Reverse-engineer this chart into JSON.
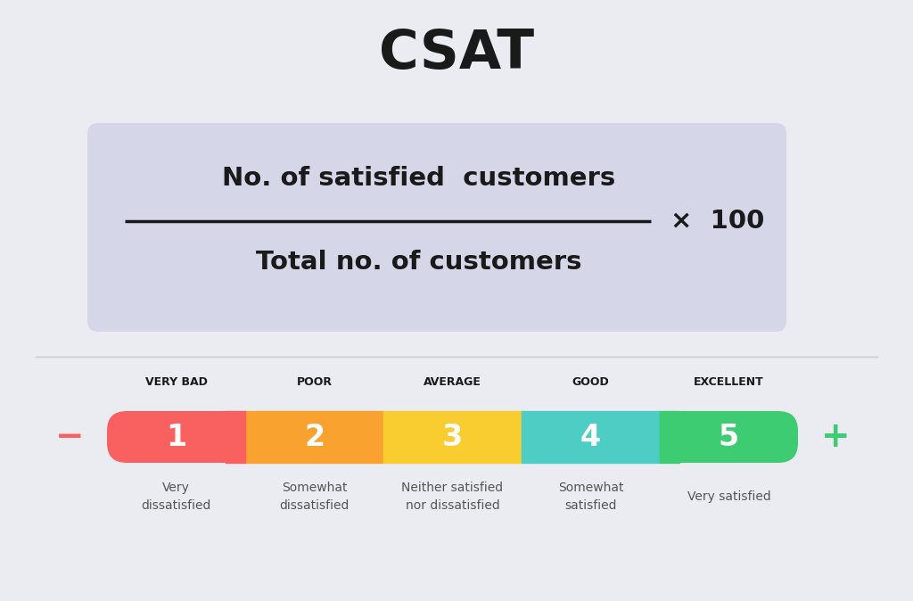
{
  "title": "CSAT",
  "title_fontsize": 44,
  "background_color": "#eaecf2",
  "formula_box_color": "#d5d7e8",
  "numerator": "No. of satisfied  customers",
  "denominator": "Total no. of customers",
  "multiplier": "×  100",
  "formula_fontsize": 21,
  "multiplier_fontsize": 21,
  "bar_labels": [
    "1",
    "2",
    "3",
    "4",
    "5"
  ],
  "bar_colors": [
    "#f96060",
    "#f9a230",
    "#f9cc30",
    "#4ecdc4",
    "#3dcc72"
  ],
  "category_labels": [
    "VERY BAD",
    "POOR",
    "AVERAGE",
    "GOOD",
    "EXCELLENT"
  ],
  "sub_labels": [
    "Very\ndissatisfied",
    "Somewhat\ndissatisfied",
    "Neither satisfied\nnor dissatisfied",
    "Somewhat\nsatisfied",
    "Very satisfied"
  ],
  "minus_color": "#f96060",
  "plus_color": "#3dcc72",
  "text_color": "#1a1a1a",
  "sub_label_color": "#555555",
  "divider_color": "#c8c8d0",
  "bar_number_fontsize": 24,
  "cat_label_fontsize": 9,
  "sub_label_fontsize": 10
}
